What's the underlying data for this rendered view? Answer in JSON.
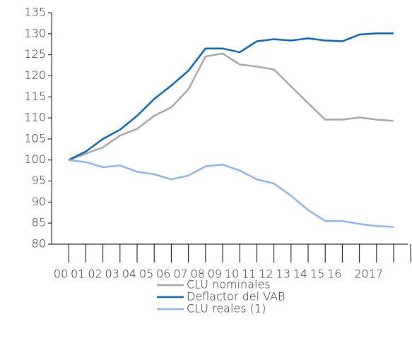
{
  "chart_data": {
    "type": "line",
    "categories": [
      "00",
      "01",
      "02",
      "03",
      "04",
      "05",
      "06",
      "07",
      "08",
      "09",
      "10",
      "11",
      "12",
      "13",
      "14",
      "15",
      "16",
      null,
      "2017",
      null
    ],
    "series": [
      {
        "name": "CLU nominales",
        "color": "#a6a6a6",
        "values": [
          100,
          101.5,
          103,
          105.8,
          107.4,
          110.5,
          112.5,
          116.8,
          124.6,
          125.3,
          122.7,
          122.2,
          121.5,
          117.5,
          113.5,
          109.6,
          109.6,
          110.1,
          109.6,
          109.3
        ]
      },
      {
        "name": "Deflactor del VAB",
        "color": "#0a65ad",
        "values": [
          100,
          102,
          105,
          107.2,
          110.5,
          114.5,
          117.7,
          121.2,
          126.5,
          126.5,
          125.6,
          128.2,
          128.7,
          128.4,
          128.9,
          128.4,
          128.2,
          129.8,
          130.1,
          130.1
        ]
      },
      {
        "name": "CLU reales (1)",
        "color": "#8db4e2",
        "values": [
          100,
          99.5,
          98.3,
          98.7,
          97.2,
          96.6,
          95.4,
          96.3,
          98.5,
          98.9,
          97.5,
          95.4,
          94.4,
          91.5,
          88.1,
          85.5,
          85.5,
          84.8,
          84.3,
          84.1
        ]
      }
    ],
    "ylim": [
      80,
      135
    ],
    "yticks": [
      80,
      85,
      90,
      95,
      100,
      105,
      110,
      115,
      120,
      125,
      130,
      135
    ]
  }
}
